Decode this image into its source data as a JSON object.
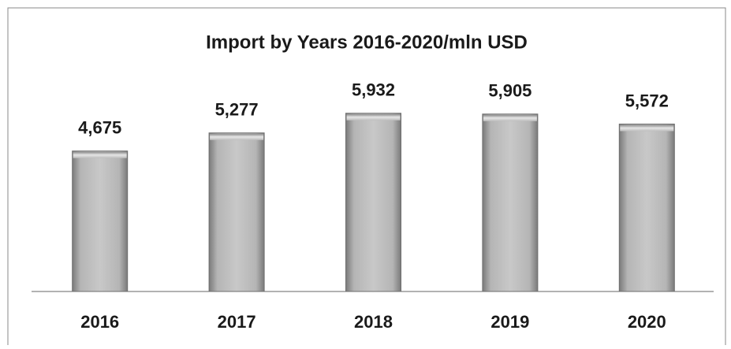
{
  "chart_data": {
    "type": "bar",
    "title": "Import by Years 2016-2020/mln USD",
    "categories": [
      "2016",
      "2017",
      "2018",
      "2019",
      "2020"
    ],
    "values": [
      4675,
      5277,
      5932,
      5905,
      5572
    ],
    "value_labels": [
      "4,675",
      "5,277",
      "5,932",
      "5,905",
      "5,572"
    ],
    "color": "#a6a6a6",
    "ylim": [
      0,
      7000
    ]
  }
}
